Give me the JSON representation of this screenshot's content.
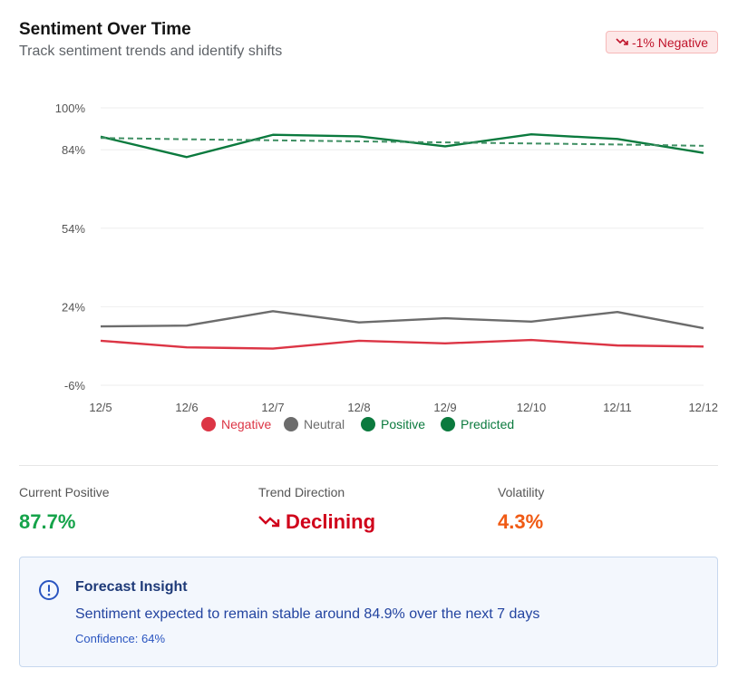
{
  "header": {
    "title": "Sentiment Over Time",
    "subtitle": "Track sentiment trends and identify shifts",
    "badge": {
      "icon": "trend-down-icon",
      "label": "-1% Negative",
      "color": "#c0142b"
    }
  },
  "chart_data": {
    "type": "line",
    "x": [
      "12/5",
      "12/6",
      "12/7",
      "12/8",
      "12/9",
      "12/10",
      "12/11",
      "12/12"
    ],
    "yticks": [
      "100%",
      "84%",
      "54%",
      "24%",
      "-6%"
    ],
    "ytick_values": [
      100,
      84,
      54,
      24,
      -6
    ],
    "ylim": [
      -6,
      100
    ],
    "grid": true,
    "legend_position": "bottom",
    "series": [
      {
        "name": "Negative",
        "color": "#dc3545",
        "style": "solid",
        "values": [
          11,
          8.5,
          8,
          11,
          10,
          11.3,
          9.2,
          8.8
        ]
      },
      {
        "name": "Neutral",
        "color": "#6c6c6c",
        "style": "solid",
        "values": [
          16.5,
          16.8,
          22.3,
          18,
          19.6,
          18.3,
          22,
          15.8
        ]
      },
      {
        "name": "Positive",
        "color": "#0b7a3e",
        "style": "solid",
        "values": [
          89,
          81.2,
          89.7,
          89.1,
          85.3,
          89.9,
          88.1,
          82.8
        ]
      },
      {
        "name": "Predicted",
        "color": "#3f8f63",
        "style": "dashed",
        "values": [
          88.5,
          88,
          87.6,
          87.2,
          86.8,
          86.4,
          86,
          85.5
        ]
      }
    ]
  },
  "metrics": [
    {
      "label": "Current Positive",
      "value": "87.7%",
      "color": "#15a34a",
      "icon": ""
    },
    {
      "label": "Trend Direction",
      "value": "Declining",
      "color": "#d0021b",
      "icon": "trend-down-icon"
    },
    {
      "label": "Volatility",
      "value": "4.3%",
      "color": "#f05a14",
      "icon": ""
    }
  ],
  "insight": {
    "icon": "info-circle-icon",
    "title": "Forecast Insight",
    "text": "Sentiment expected to remain stable around 84.9% over the next 7 days",
    "confidence": "Confidence: 64%"
  }
}
